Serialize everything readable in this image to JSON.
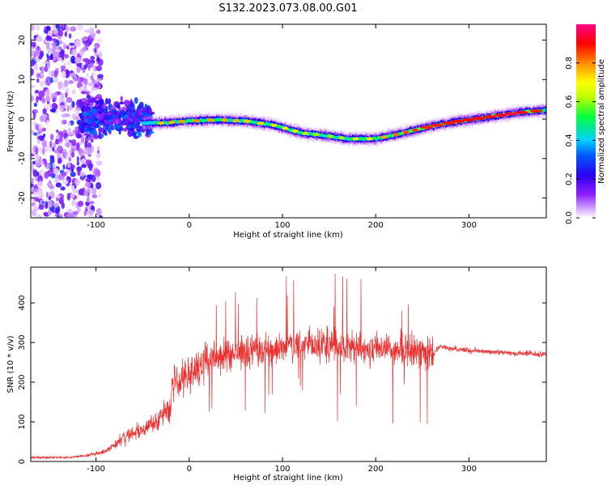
{
  "title": "S132.2023.073.08.00.G01",
  "colors": {
    "snr_line": "#ee2e2e",
    "colormap": [
      "#ffffff",
      "#d9b3ff",
      "#8f20ff",
      "#2a00f0",
      "#0057ff",
      "#00d0ff",
      "#00ff40",
      "#b8ff00",
      "#ffff00",
      "#ff8a00",
      "#ff0000",
      "#ff0088"
    ]
  },
  "chart_data": [
    {
      "type": "heatmap",
      "xlabel": "Height of straight line (km)",
      "ylabel": "Frequency (Hz)",
      "xlim": [
        -170,
        383
      ],
      "ylim": [
        -25,
        24
      ],
      "xticks": [
        -100,
        0,
        100,
        200,
        300
      ],
      "yticks": [
        -20,
        -10,
        0,
        10,
        20
      ],
      "grid": false,
      "colorbar": {
        "label": "Normalized spectral amplitude",
        "range": [
          0,
          1
        ],
        "ticks": [
          0.0,
          0.2,
          0.4,
          0.6,
          0.8
        ]
      },
      "ridge": {
        "x": [
          -50,
          -30,
          0,
          30,
          60,
          90,
          120,
          150,
          170,
          200,
          230,
          260,
          290,
          320,
          350,
          383
        ],
        "frequency": [
          -1,
          -1,
          -0.5,
          -0.2,
          -0.5,
          -1.5,
          -3.5,
          -4.3,
          -5,
          -5,
          -3.5,
          -1.8,
          -0.5,
          0.5,
          1.5,
          2.3
        ],
        "peak_amplitude": [
          0.35,
          0.75,
          0.8,
          0.78,
          0.75,
          0.72,
          0.65,
          0.6,
          0.62,
          0.75,
          0.85,
          0.88,
          0.9,
          0.92,
          0.95,
          0.85
        ]
      }
    },
    {
      "type": "line",
      "xlabel": "Height of straight line (km)",
      "ylabel": "SNR (10 * v/v)",
      "xlim": [
        -170,
        383
      ],
      "ylim": [
        0,
        490
      ],
      "xticks": [
        -100,
        0,
        100,
        200,
        300
      ],
      "yticks": [
        0,
        100,
        200,
        300,
        400
      ],
      "grid": false,
      "series": [
        {
          "x": [
            -170,
            -130,
            -110,
            -90,
            -70,
            -50,
            -30,
            -20,
            -18,
            -10,
            0,
            20,
            40,
            60,
            80,
            100,
            130,
            160,
            200,
            230,
            250,
            262,
            268,
            280,
            300,
            330,
            360,
            383
          ],
          "values": [
            10,
            10,
            15,
            25,
            60,
            80,
            110,
            140,
            210,
            200,
            220,
            250,
            270,
            280,
            285,
            290,
            295,
            290,
            285,
            280,
            275,
            270,
            290,
            285,
            280,
            275,
            272,
            270
          ]
        }
      ]
    }
  ]
}
